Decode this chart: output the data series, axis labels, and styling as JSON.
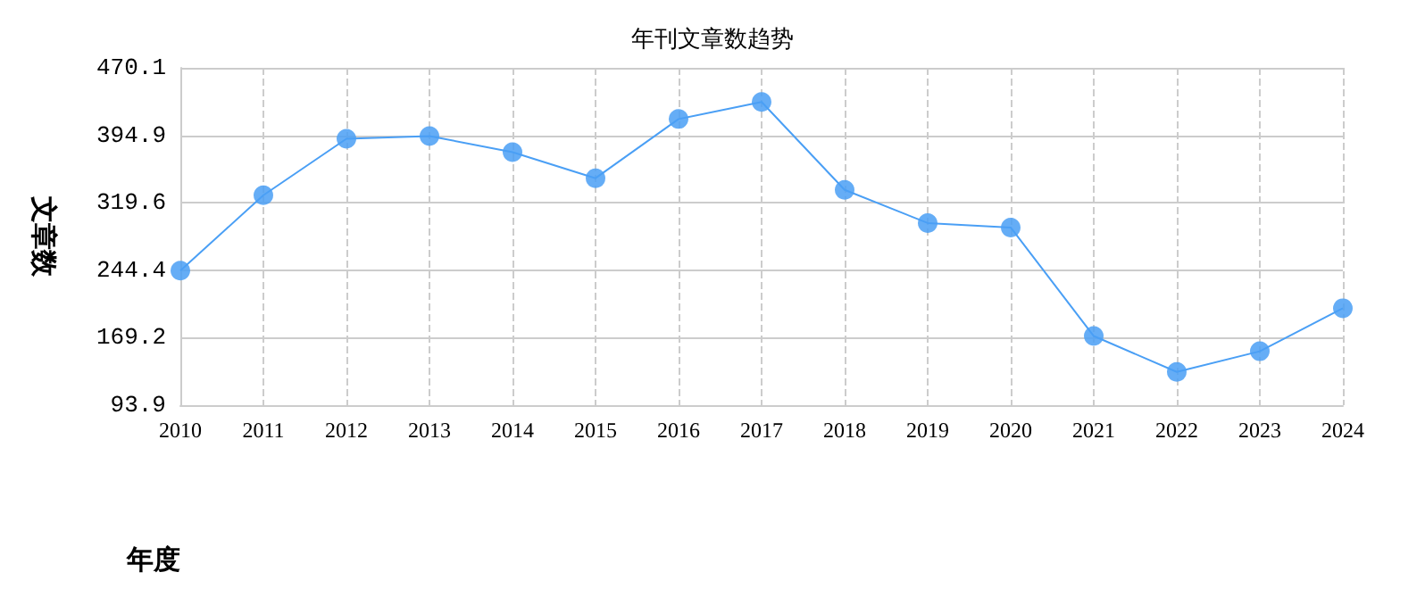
{
  "chart_data": {
    "type": "line",
    "title": "年刊文章数趋势",
    "xlabel": "年度",
    "ylabel": "文章数",
    "categories": [
      "2010",
      "2011",
      "2012",
      "2013",
      "2014",
      "2015",
      "2016",
      "2017",
      "2018",
      "2019",
      "2020",
      "2021",
      "2022",
      "2023",
      "2024"
    ],
    "series": [
      {
        "color": "#4a9ff5",
        "values": [
          244,
          328,
          391,
          394,
          376,
          347,
          413,
          432,
          334,
          297,
          292,
          171,
          131,
          154,
          202
        ]
      }
    ],
    "ylim": [
      93.9,
      470.1
    ],
    "yticks": [
      93.9,
      169.2,
      244.4,
      319.6,
      394.9,
      470.1
    ],
    "grid": true,
    "marker": "circle",
    "line_style": "solid"
  }
}
